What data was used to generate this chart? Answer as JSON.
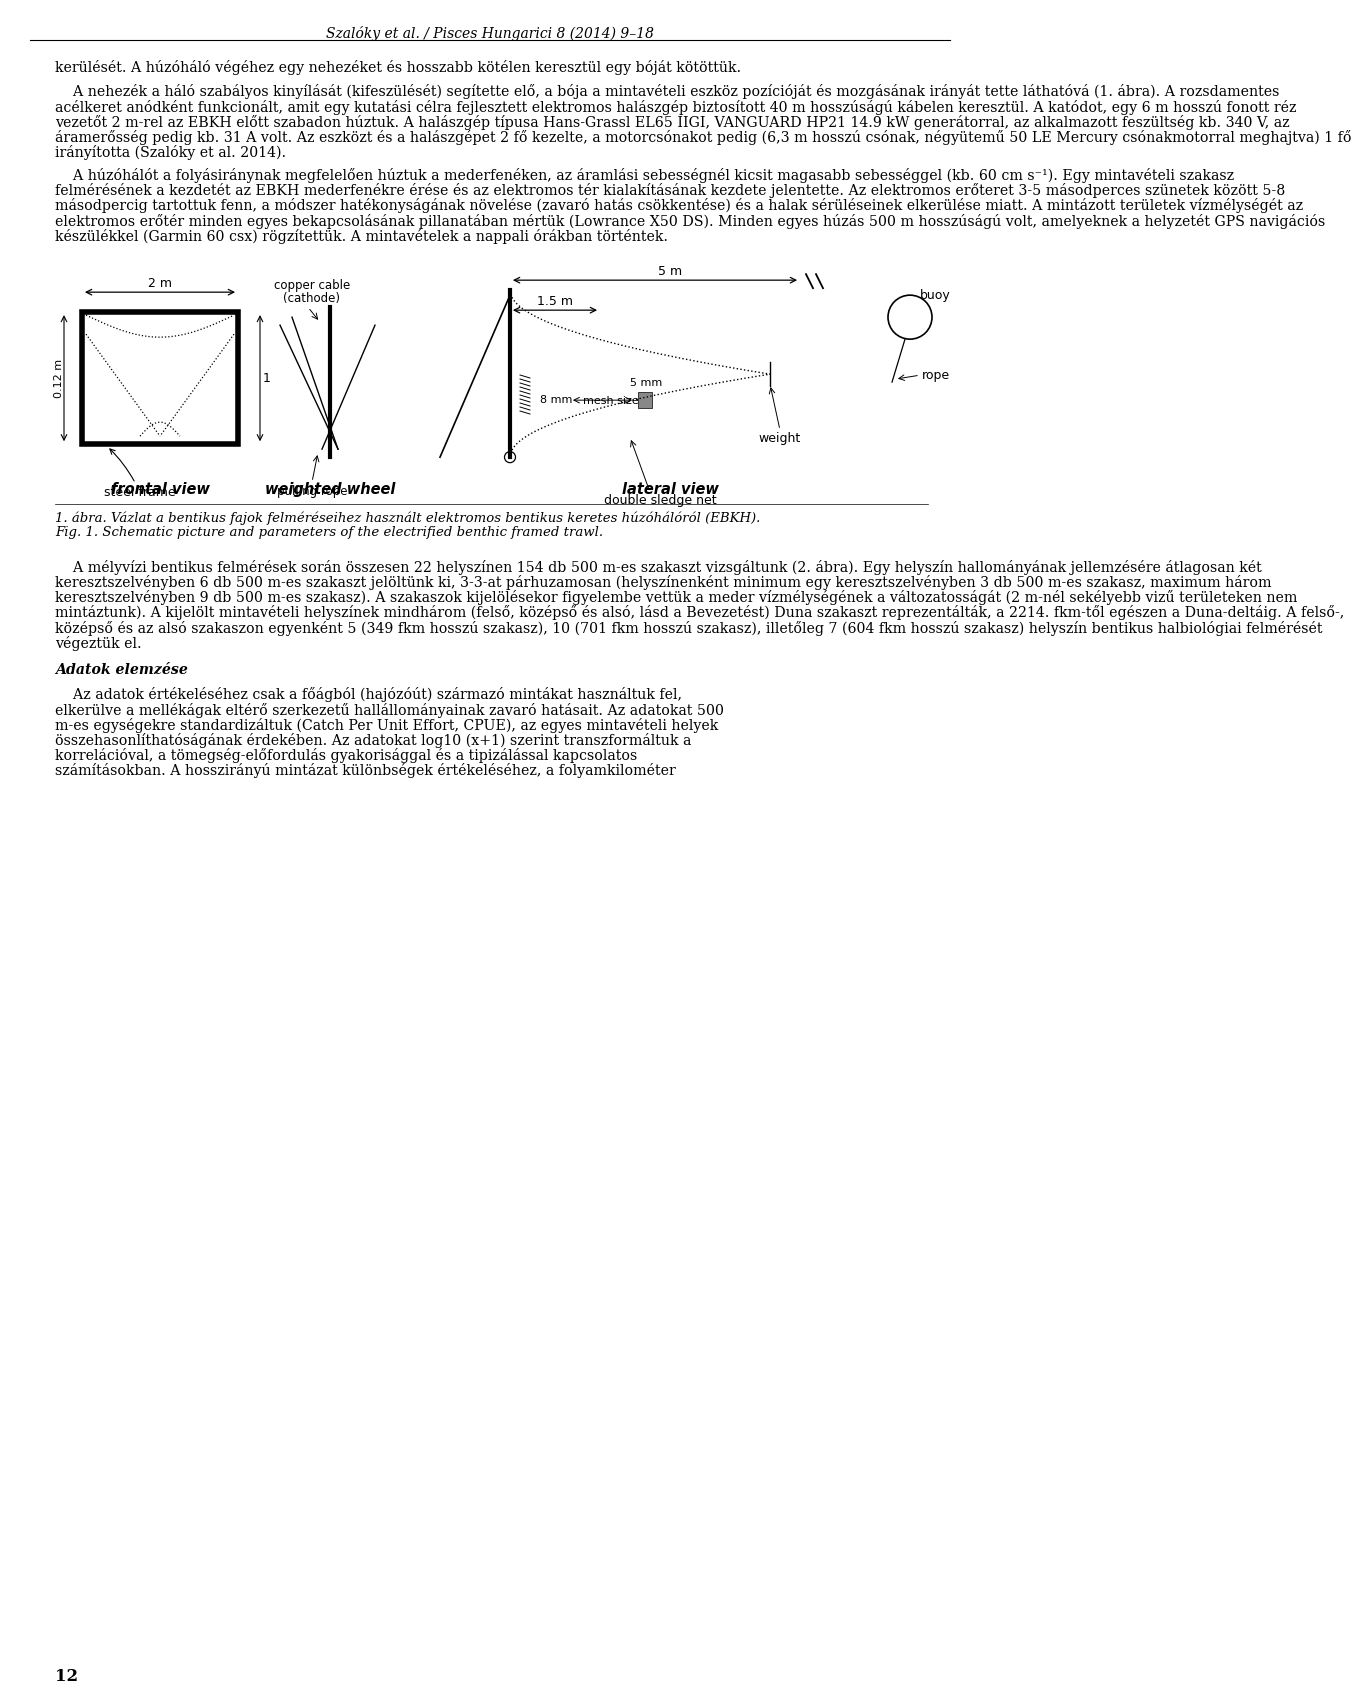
{
  "header": "Szalóky et al. / Pisces Hungarici 8 (2014) 9–18",
  "page_number": "12",
  "para1": "kerülését. A húzóháló végéhez egy nehezéket és hosszabb kötélen keresztül egy bóját kötöttük.",
  "para2_lines": [
    "    A nehezék a háló szabályos kinyílását (kifeszülését) segítette elő, a bója a mintavételi eszköz pozícióját és mozgásának irányát tette láthatóvá (1. ábra). A rozsdamentes",
    "acélkeret anódként funkcionált, amit egy kutatási célra fejlesztett elektromos halászgép biztosított 40 m hosszúságú kábelen keresztül. A katódot, egy 6 m hosszú fonott réz",
    "vezetőt 2 m-rel az EBKH előtt szabadon húztuk. A halászgép típusa Hans-Grassl EL65 IIGI, VANGUARD HP21 14.9 kW generátorral, az alkalmazott feszültség kb. 340 V, az",
    "áramerősség pedig kb. 31 A volt. Az eszközt és a halászgépet 2 fő kezelte, a motorcsónakot pedig (6,3 m hosszú csónak, négyütemű 50 LE Mercury csónakmotorral meghajtva) 1 fő",
    "irányította (Szalóky et al. 2014)."
  ],
  "para3_lines": [
    "    A húzóhálót a folyásiránynak megfelelően húztuk a mederfenéken, az áramlási sebességnél kicsit magasabb sebességgel (kb. 60 cm s⁻¹). Egy mintavételi szakasz",
    "felmérésének a kezdetét az EBKH mederfenékre érése és az elektromos tér kialakításának kezdete jelentette. Az elektromos erőteret 3-5 másodperces szünetek között 5-8",
    "másodpercig tartottuk fenn, a módszer hatékonyságának növelése (zavaró hatás csökkentése) és a halak sérüléseinek elkerülése miatt. A mintázott területek vízmélységét az",
    "elektromos erőtér minden egyes bekapcsolásának pillanatában mértük (Lowrance X50 DS). Minden egyes húzás 500 m hosszúságú volt, amelyeknek a helyzetét GPS navigációs",
    "készülékkel (Garmin 60 csx) rögzítettük. A mintavételek a nappali órákban történtek."
  ],
  "fig_cap1": "1. ábra. Vázlat a bentikus fajok felméréseihez használt elektromos bentikus keretes húzóhálóról (EBKH).",
  "fig_cap2": "Fig. 1. Schematic picture and parameters of the electrified benthic framed trawl.",
  "sec_header": "Adatok elemzése",
  "para4_lines": [
    "    A mélyvízi bentikus felmérések során összesen 22 helyszínen 154 db 500 m-es szakaszt vizsgáltunk (2. ábra). Egy helyszín hallományának jellemzésére átlagosan két",
    "keresztszelvényben 6 db 500 m-es szakaszt jelöltünk ki, 3-3-at párhuzamosan (helyszínenként minimum egy keresztszelvényben 3 db 500 m-es szakasz, maximum három",
    "keresztszelvényben 9 db 500 m-es szakasz). A szakaszok kijelölésekor figyelembe vettük a meder vízmélységének a változatosságát (2 m-nél sekélyebb vizű területeken nem",
    "mintáztunk). A kijelölt mintavételi helyszínek mindhárom (felső, középső és alsó, lásd a Bevezetést) Duna szakaszt reprezentálták, a 2214. fkm-től egészen a Duna-deltáig. A felső-,",
    "középső és az alsó szakaszon egyenként 5 (349 fkm hosszú szakasz), 10 (701 fkm hosszú szakasz), illetőleg 7 (604 fkm hosszú szakasz) helyszín bentikus halbiológiai felmérését",
    "végeztük el."
  ],
  "sec_header2": "Adatok elemzése",
  "para5_lines": [
    "    Az adatok értékeléséhez csak a főágból (hajózóút) származó mintákat használtuk fel,",
    "elkerülve a mellékágak eltérő szerkezetű hallállományainak zavaró hatásait. Az adatokat 500",
    "m-es egységekre standardizáltuk (Catch Per Unit Effort, CPUE), az egyes mintavételi helyek",
    "összehasonlíthatóságának érdekében. Az adatokat log10 (x+1) szerint transzformáltuk a",
    "korrelációval, a tömegség-előfordulás gyakorisággal és a tipizálással kapcsolatos",
    "számításokban. A hosszirányú mintázat különbségek értékeléséhez, a folyamkilométer"
  ],
  "background_color": "#ffffff",
  "text_color": "#000000"
}
